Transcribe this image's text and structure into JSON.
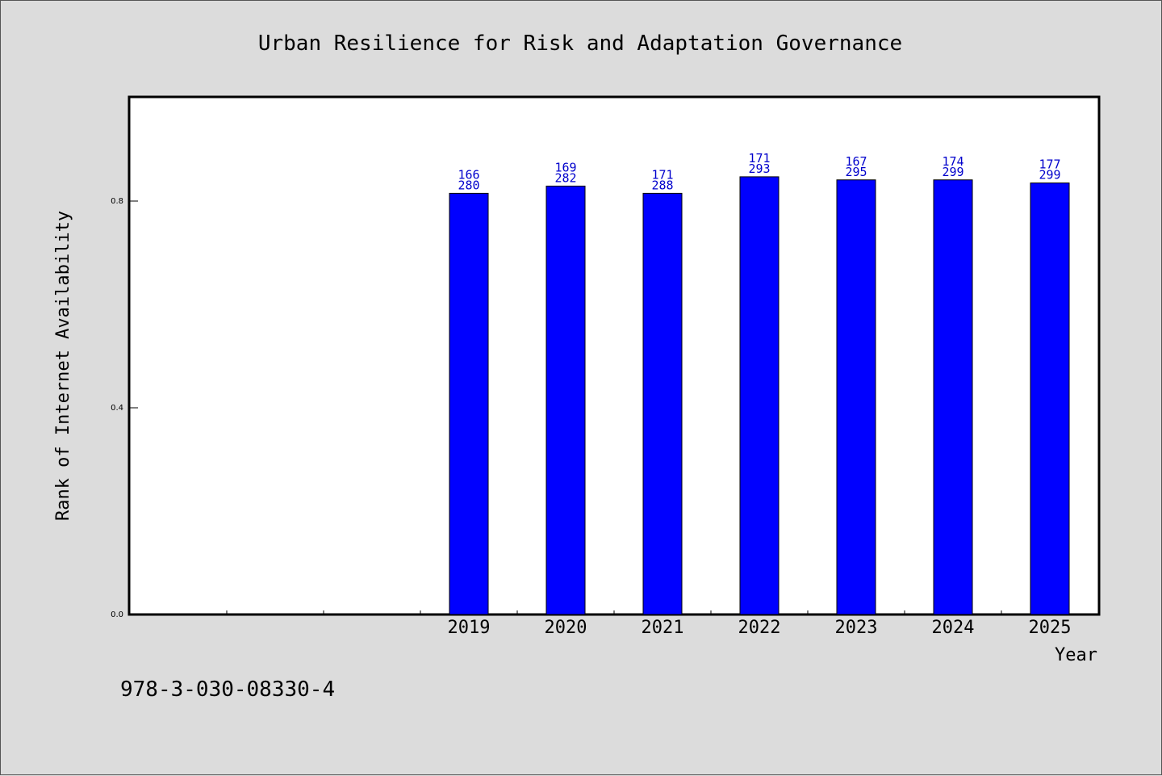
{
  "chart_data": {
    "type": "bar",
    "title": "Urban Resilience for Risk and Adaptation Governance",
    "xlabel": "Year",
    "ylabel": "Rank of Internet Availability",
    "categories": [
      "",
      "",
      "",
      "2019",
      "2020",
      "2021",
      "2022",
      "2023",
      "2024",
      "2025"
    ],
    "values": [
      null,
      null,
      null,
      0.815,
      0.829,
      0.815,
      0.847,
      0.841,
      0.841,
      0.835
    ],
    "label_top": [
      "",
      "",
      "",
      "166",
      "169",
      "171",
      "171",
      "167",
      "174",
      "177"
    ],
    "label_bottom": [
      "",
      "",
      "",
      "280",
      "282",
      "288",
      "293",
      "295",
      "299",
      "299"
    ],
    "yticks": [
      "0.0",
      "0.4",
      "0.8"
    ],
    "ytick_values": [
      0.0,
      0.4,
      0.8
    ],
    "ylim": [
      0,
      1.0
    ],
    "bar_color": "#0000ff",
    "label_color": "#0000cc",
    "grid": false
  },
  "footer": {
    "isbn": "978-3-030-08330-4"
  }
}
